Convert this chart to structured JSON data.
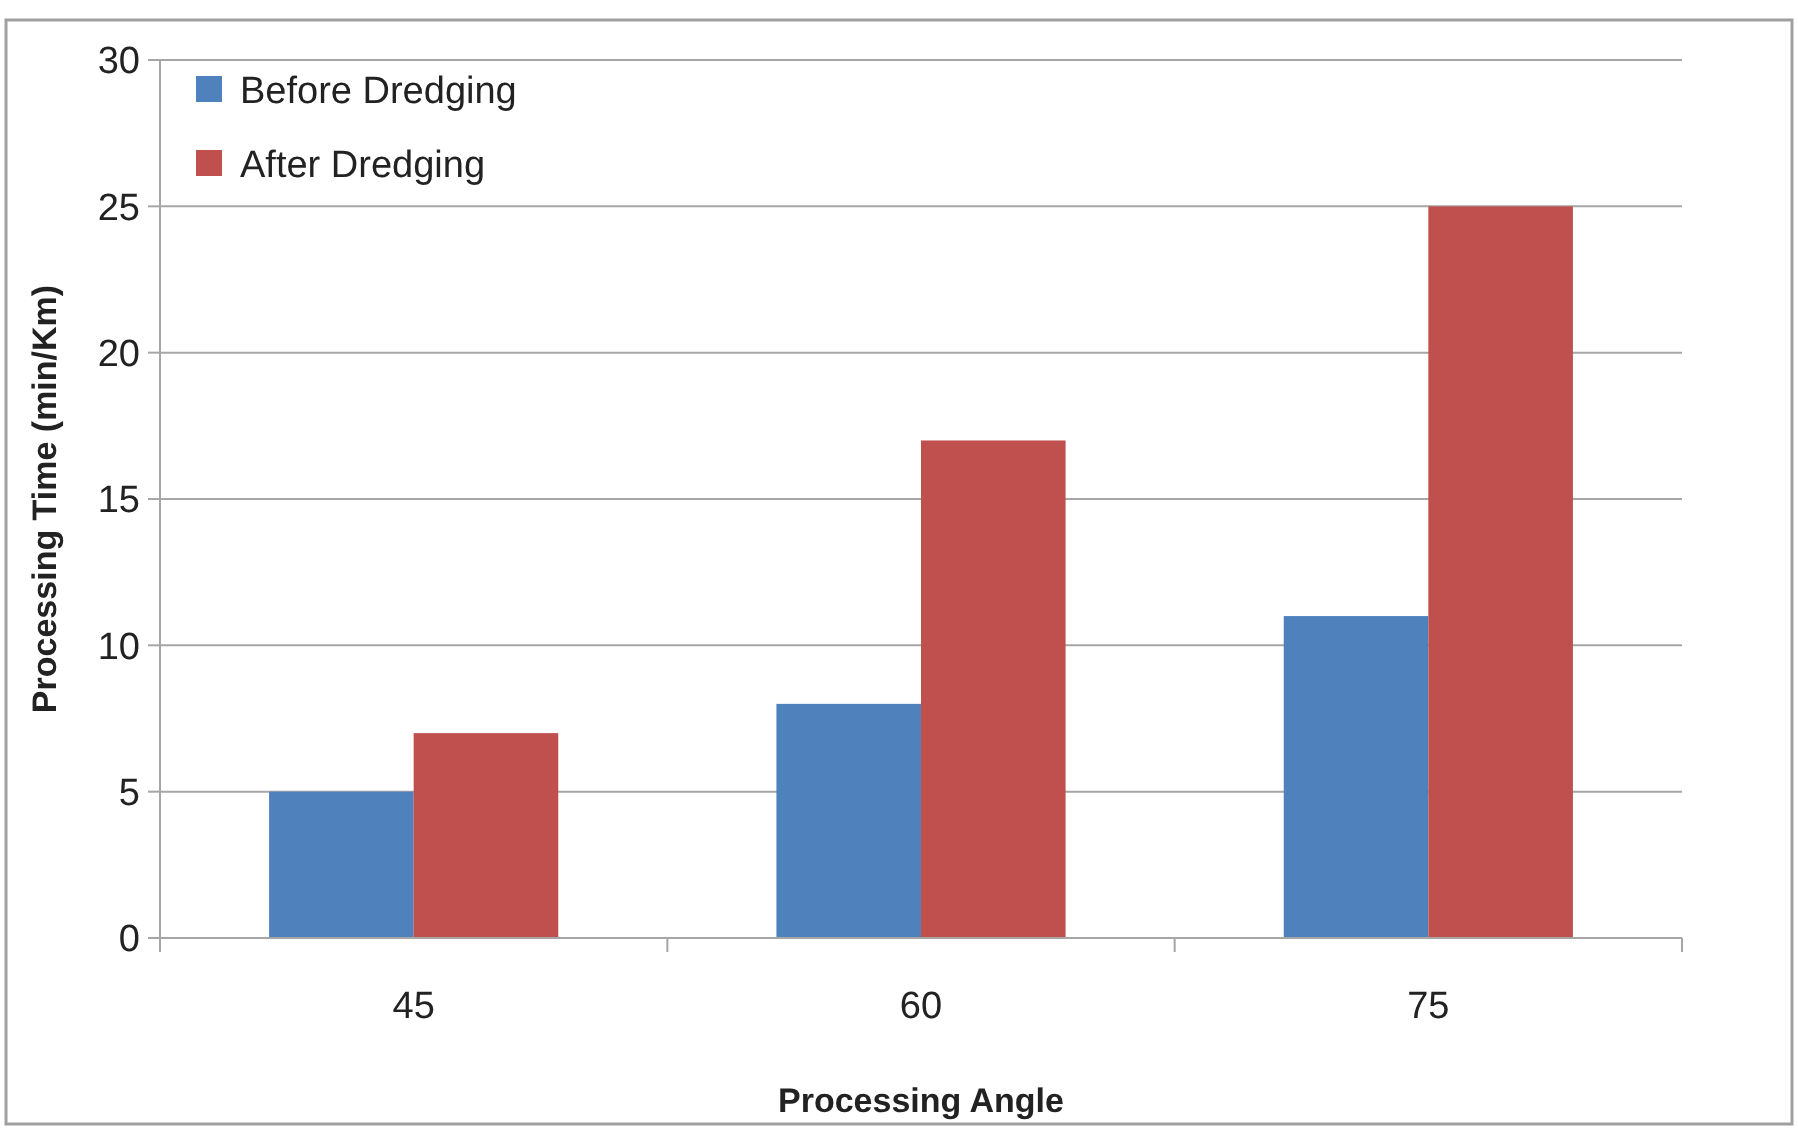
{
  "chart_data": {
    "type": "bar",
    "xlabel": "Processing Angle",
    "ylabel": "Processing Time (min/Km)",
    "categories": [
      "45",
      "60",
      "75"
    ],
    "series": [
      {
        "name": "Before Dredging",
        "color": "#4f81bd",
        "values": [
          5,
          8,
          11
        ]
      },
      {
        "name": "After Dredging",
        "color": "#c0504d",
        "values": [
          7,
          17,
          25
        ]
      }
    ],
    "ylim": [
      0,
      30
    ],
    "yticks": [
      0,
      5,
      10,
      15,
      20,
      25,
      30
    ],
    "grid": "y",
    "legend": "top left"
  }
}
